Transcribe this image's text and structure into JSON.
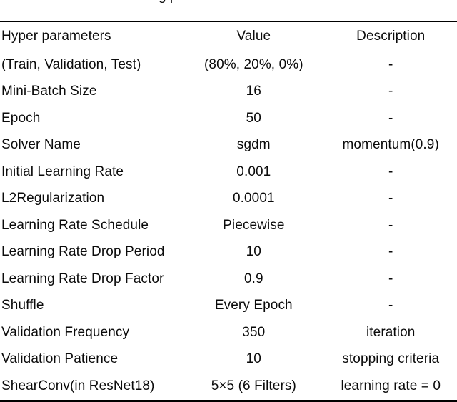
{
  "caption_fragment": "g p",
  "colors": {
    "background": "#ffffff",
    "text": "#0b0b0b",
    "rule": "#000000"
  },
  "table": {
    "headers": {
      "param": "Hyper parameters",
      "value": "Value",
      "description": "Description"
    },
    "rows": [
      {
        "param": "(Train, Validation, Test)",
        "value": "(80%, 20%, 0%)",
        "description": "-"
      },
      {
        "param": "Mini-Batch Size",
        "value": "16",
        "description": "-"
      },
      {
        "param": "Epoch",
        "value": "50",
        "description": "-"
      },
      {
        "param": "Solver Name",
        "value": "sgdm",
        "description": "momentum(0.9)"
      },
      {
        "param": "Initial Learning Rate",
        "value": "0.001",
        "description": "-"
      },
      {
        "param": "L2Regularization",
        "value": "0.0001",
        "description": "-"
      },
      {
        "param": "Learning Rate Schedule",
        "value": "Piecewise",
        "description": "-"
      },
      {
        "param": "Learning Rate Drop Period",
        "value": "10",
        "description": "-"
      },
      {
        "param": "Learning Rate Drop Factor",
        "value": "0.9",
        "description": "-"
      },
      {
        "param": "Shuffle",
        "value": "Every Epoch",
        "description": "-"
      },
      {
        "param": "Validation Frequency",
        "value": "350",
        "description": "iteration"
      },
      {
        "param": "Validation Patience",
        "value": "10",
        "description": "stopping criteria"
      },
      {
        "param": "ShearConv(in ResNet18)",
        "value": "5×5 (6 Filters)",
        "description": "learning rate = 0"
      }
    ]
  }
}
